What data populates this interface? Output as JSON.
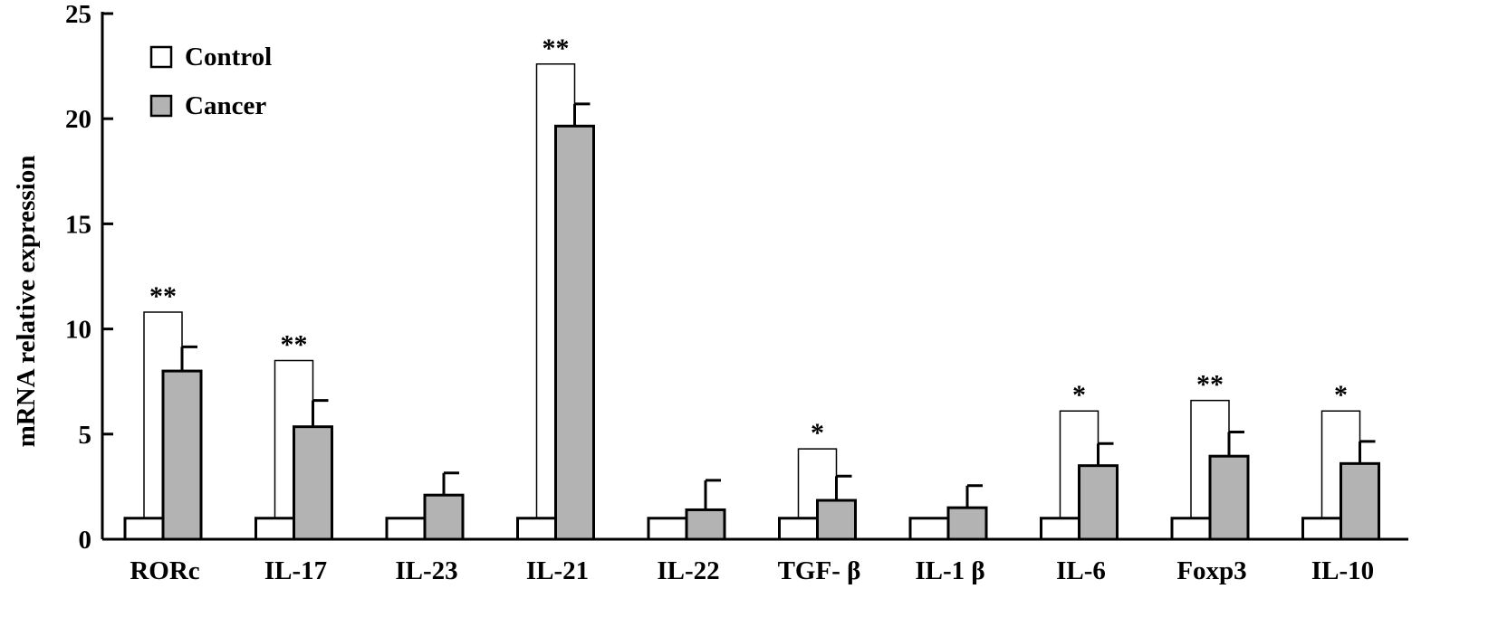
{
  "chart_data": {
    "type": "bar",
    "title": "",
    "xlabel": "",
    "ylabel": "mRNA relative expression",
    "ylim": [
      0,
      25
    ],
    "yticks": [
      0,
      5,
      10,
      15,
      20,
      25
    ],
    "grid": false,
    "legend_position": "top-left",
    "categories": [
      "RORc",
      "IL-17",
      "IL-23",
      "IL-21",
      "IL-22",
      "TGF- β",
      "IL-1 β",
      "IL-6",
      "Foxp3",
      "IL-10"
    ],
    "series": [
      {
        "name": "Control",
        "color": "#ffffff",
        "values": [
          1,
          1,
          1,
          1,
          1,
          1,
          1,
          1,
          1,
          1
        ],
        "errors": [
          0,
          0,
          0,
          0,
          0,
          0,
          0,
          0,
          0,
          0
        ]
      },
      {
        "name": "Cancer",
        "color": "#b3b3b3",
        "values": [
          8.0,
          5.35,
          2.1,
          19.65,
          1.4,
          1.85,
          1.5,
          3.5,
          3.95,
          3.6
        ],
        "errors": [
          1.15,
          1.25,
          1.05,
          1.05,
          1.4,
          1.15,
          1.05,
          1.05,
          1.15,
          1.05
        ]
      }
    ],
    "significance": [
      {
        "category_index": 0,
        "label": "**",
        "bracket_top": 10.8
      },
      {
        "category_index": 1,
        "label": "**",
        "bracket_top": 8.5
      },
      {
        "category_index": 3,
        "label": "**",
        "bracket_top": 22.6
      },
      {
        "category_index": 5,
        "label": "*",
        "bracket_top": 4.3
      },
      {
        "category_index": 7,
        "label": "*",
        "bracket_top": 6.1
      },
      {
        "category_index": 8,
        "label": "**",
        "bracket_top": 6.6
      },
      {
        "category_index": 9,
        "label": "*",
        "bracket_top": 6.1
      }
    ]
  }
}
